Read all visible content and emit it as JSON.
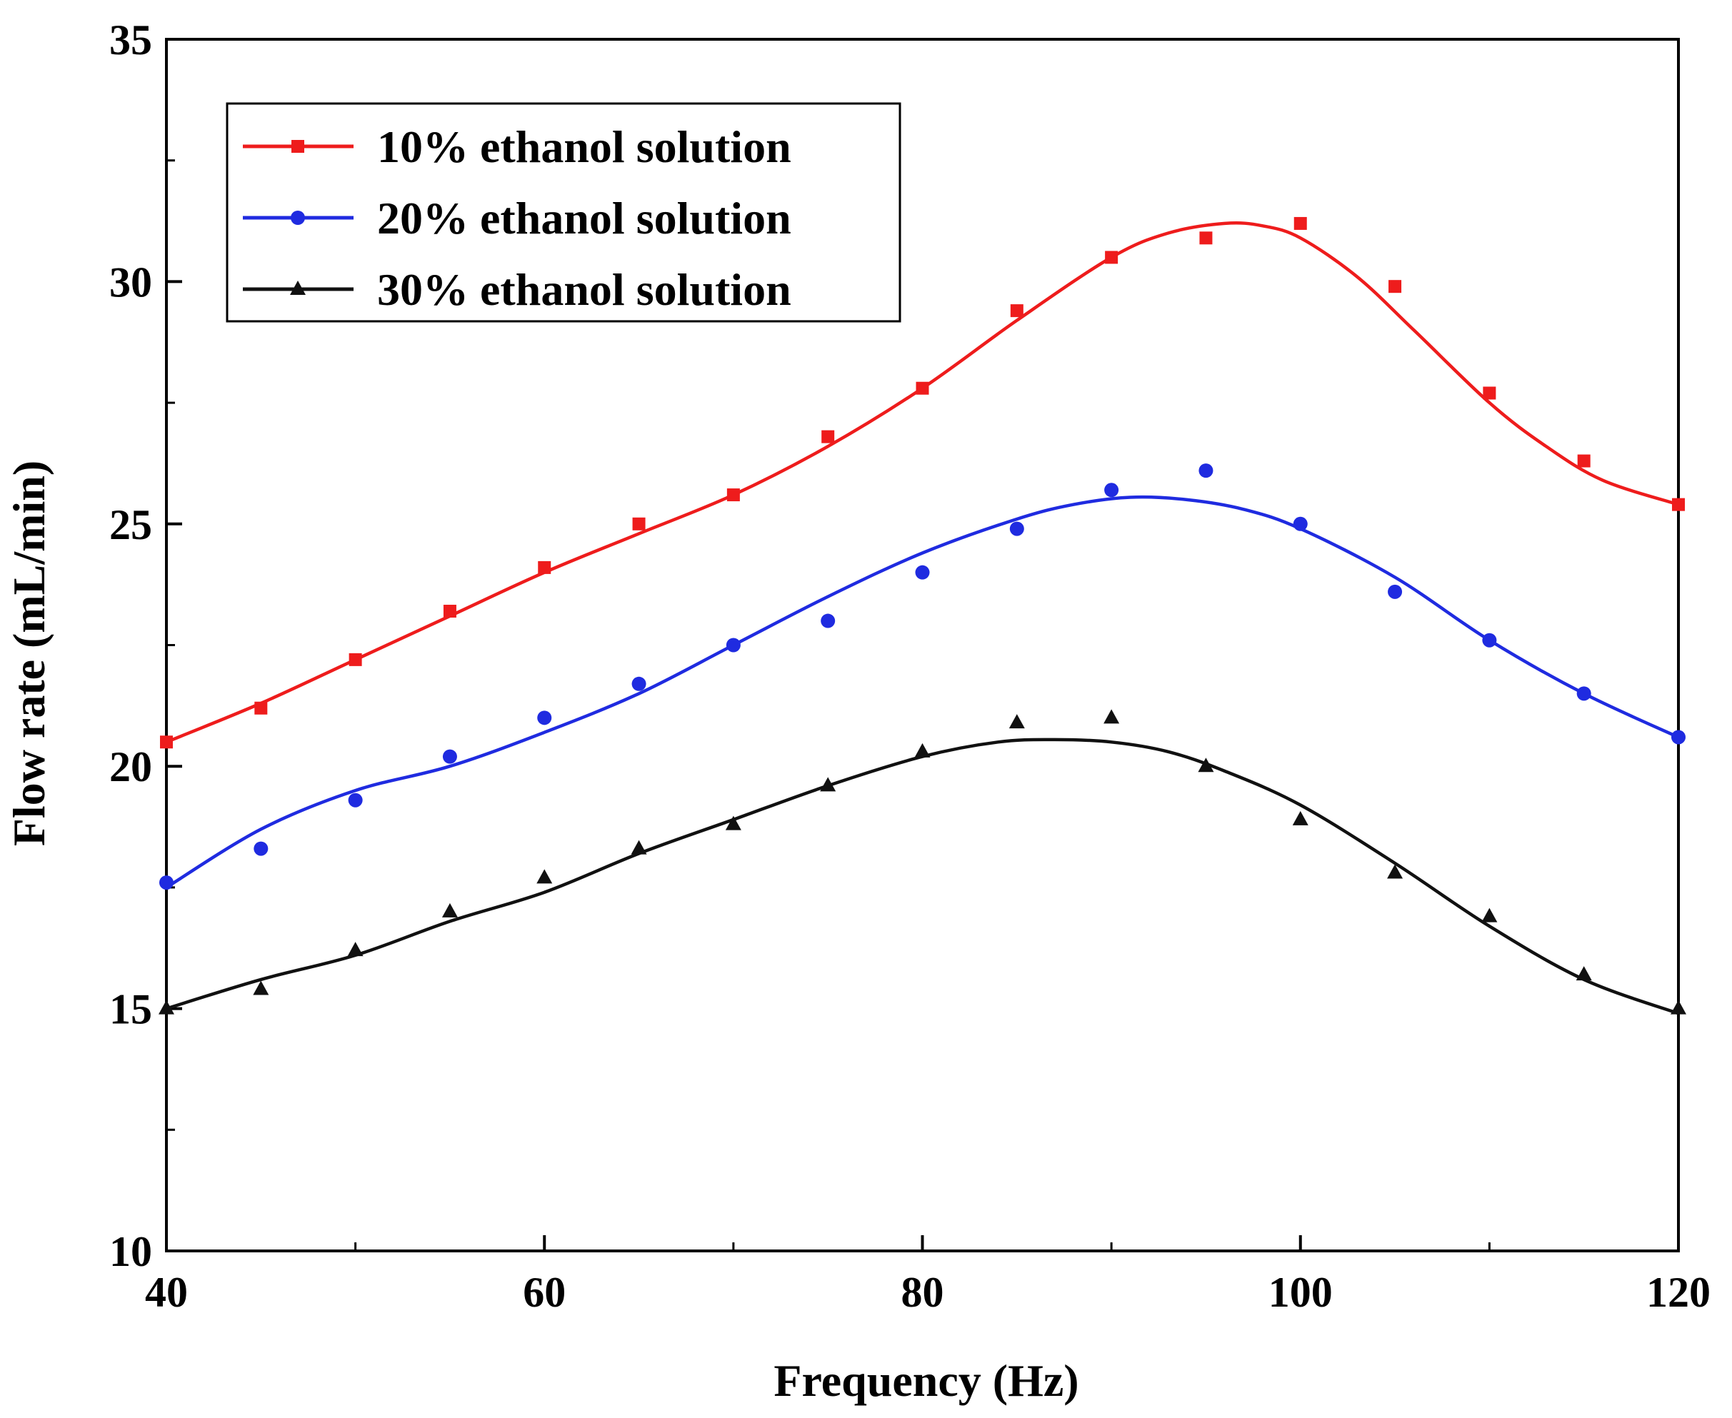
{
  "chart_data": {
    "type": "scatter",
    "title": "",
    "xlabel": "Frequency (Hz)",
    "ylabel": "Flow rate (mL/min)",
    "xlim": [
      40,
      120
    ],
    "ylim": [
      10,
      35
    ],
    "xticks": [
      40,
      60,
      80,
      100,
      120
    ],
    "yticks": [
      10,
      15,
      20,
      25,
      30,
      35
    ],
    "grid": false,
    "legend_position": "top-left",
    "series": [
      {
        "name": "10% ethanol solution",
        "color": "#ee1c1c",
        "marker": "square",
        "x": [
          40,
          45,
          50,
          55,
          60,
          65,
          70,
          75,
          80,
          85,
          90,
          95,
          100,
          105,
          110,
          115,
          120
        ],
        "y": [
          20.5,
          21.2,
          22.2,
          23.2,
          24.1,
          25.0,
          25.6,
          26.8,
          27.8,
          29.4,
          30.5,
          30.9,
          31.2,
          29.9,
          27.7,
          26.3,
          25.4
        ],
        "fit_x": [
          40,
          45,
          50,
          55,
          60,
          65,
          70,
          75,
          80,
          85,
          90,
          93,
          96,
          98,
          100,
          103,
          106,
          110,
          113,
          116,
          120
        ],
        "fit_y": [
          20.5,
          21.3,
          22.2,
          23.1,
          24.0,
          24.8,
          25.6,
          26.6,
          27.8,
          29.2,
          30.5,
          31.0,
          31.2,
          31.15,
          30.9,
          30.1,
          29.0,
          27.5,
          26.6,
          25.9,
          25.4
        ]
      },
      {
        "name": "20% ethanol solution",
        "color": "#1f2be0",
        "marker": "circle",
        "x": [
          40,
          45,
          50,
          55,
          60,
          65,
          70,
          75,
          80,
          85,
          90,
          95,
          100,
          105,
          110,
          115,
          120
        ],
        "y": [
          17.6,
          18.3,
          19.3,
          20.2,
          21.0,
          21.7,
          22.5,
          23.0,
          24.0,
          24.9,
          25.7,
          26.1,
          25.0,
          23.6,
          22.6,
          21.5,
          20.6
        ],
        "fit_x": [
          40,
          45,
          50,
          55,
          60,
          65,
          70,
          75,
          80,
          85,
          88,
          91,
          94,
          97,
          100,
          105,
          110,
          115,
          120
        ],
        "fit_y": [
          17.5,
          18.7,
          19.5,
          20.0,
          20.7,
          21.5,
          22.5,
          23.5,
          24.4,
          25.1,
          25.4,
          25.55,
          25.5,
          25.3,
          24.9,
          23.9,
          22.6,
          21.5,
          20.6
        ]
      },
      {
        "name": "30% ethanol solution",
        "color": "#111111",
        "marker": "triangle",
        "x": [
          40,
          45,
          50,
          55,
          60,
          65,
          70,
          75,
          80,
          85,
          90,
          95,
          100,
          105,
          110,
          115,
          120
        ],
        "y": [
          15.0,
          15.4,
          16.2,
          17.0,
          17.7,
          18.3,
          18.8,
          19.6,
          20.3,
          20.9,
          21.0,
          20.0,
          18.9,
          17.8,
          16.9,
          15.7,
          15.0
        ],
        "fit_x": [
          40,
          45,
          50,
          55,
          60,
          65,
          70,
          75,
          80,
          84,
          87,
          90,
          93,
          96,
          100,
          105,
          110,
          115,
          120
        ],
        "fit_y": [
          15.0,
          15.6,
          16.1,
          16.8,
          17.4,
          18.2,
          18.9,
          19.6,
          20.2,
          20.5,
          20.55,
          20.5,
          20.3,
          19.9,
          19.2,
          18.0,
          16.7,
          15.6,
          14.9
        ]
      }
    ]
  }
}
